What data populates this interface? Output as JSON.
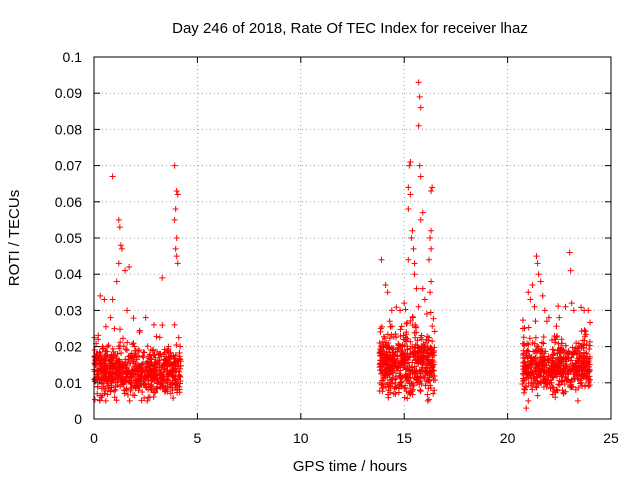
{
  "chart_data": {
    "type": "scatter",
    "title": "Day 246 of 2018, Rate Of TEC Index for receiver lhaz",
    "xlabel": "GPS time / hours",
    "ylabel": "ROTI / TECUs",
    "xlim": [
      0,
      25
    ],
    "ylim": [
      0,
      0.1
    ],
    "x_ticks": [
      0,
      5,
      10,
      15,
      20,
      25
    ],
    "x_tick_labels": [
      "0",
      "5",
      "10",
      "15",
      "20",
      "25"
    ],
    "y_ticks": [
      0,
      0.01,
      0.02,
      0.03,
      0.04,
      0.05,
      0.06,
      0.07,
      0.08,
      0.09,
      0.1
    ],
    "y_tick_labels": [
      "0",
      "0.01",
      "0.02",
      "0.03",
      "0.04",
      "0.05",
      "0.06",
      "0.07",
      "0.08",
      "0.09",
      "0.1"
    ],
    "grid": true,
    "marker": "plus",
    "marker_color": "#ff0000",
    "series": [
      {
        "name": "ROTI",
        "clusters": [
          {
            "x_range": [
              0.0,
              4.2
            ],
            "y_median": 0.013,
            "y_spread": 0.004,
            "count": 700
          },
          {
            "x_range": [
              13.8,
              16.5
            ],
            "y_median": 0.015,
            "y_spread": 0.005,
            "count": 520
          },
          {
            "x_range": [
              20.7,
              24.0
            ],
            "y_median": 0.014,
            "y_spread": 0.004,
            "count": 560
          }
        ],
        "points": [
          [
            0.9,
            0.067
          ],
          [
            1.2,
            0.055
          ],
          [
            1.25,
            0.053
          ],
          [
            1.3,
            0.048
          ],
          [
            1.35,
            0.047
          ],
          [
            1.2,
            0.043
          ],
          [
            1.5,
            0.041
          ],
          [
            1.7,
            0.042
          ],
          [
            0.3,
            0.034
          ],
          [
            0.5,
            0.033
          ],
          [
            0.9,
            0.033
          ],
          [
            1.1,
            0.038
          ],
          [
            1.6,
            0.03
          ],
          [
            3.3,
            0.039
          ],
          [
            2.5,
            0.028
          ],
          [
            3.9,
            0.07
          ],
          [
            4.0,
            0.063
          ],
          [
            4.05,
            0.062
          ],
          [
            3.95,
            0.058
          ],
          [
            3.9,
            0.055
          ],
          [
            4.0,
            0.05
          ],
          [
            3.95,
            0.047
          ],
          [
            4.0,
            0.045
          ],
          [
            4.05,
            0.043
          ],
          [
            3.9,
            0.026
          ],
          [
            0.2,
            0.022
          ],
          [
            0.8,
            0.028
          ],
          [
            2.2,
            0.024
          ],
          [
            2.9,
            0.026
          ],
          [
            3.6,
            0.02
          ],
          [
            13.9,
            0.044
          ],
          [
            14.1,
            0.037
          ],
          [
            14.2,
            0.035
          ],
          [
            14.4,
            0.03
          ],
          [
            14.8,
            0.03
          ],
          [
            15.0,
            0.032
          ],
          [
            15.2,
            0.044
          ],
          [
            15.2,
            0.058
          ],
          [
            15.3,
            0.071
          ],
          [
            15.25,
            0.07
          ],
          [
            15.2,
            0.064
          ],
          [
            15.3,
            0.062
          ],
          [
            15.35,
            0.05
          ],
          [
            15.4,
            0.052
          ],
          [
            15.45,
            0.047
          ],
          [
            15.5,
            0.043
          ],
          [
            15.5,
            0.04
          ],
          [
            15.7,
            0.093
          ],
          [
            15.75,
            0.089
          ],
          [
            15.8,
            0.086
          ],
          [
            15.7,
            0.081
          ],
          [
            15.75,
            0.07
          ],
          [
            15.8,
            0.067
          ],
          [
            15.9,
            0.057
          ],
          [
            15.8,
            0.055
          ],
          [
            16.3,
            0.063
          ],
          [
            16.35,
            0.064
          ],
          [
            16.3,
            0.052
          ],
          [
            16.25,
            0.05
          ],
          [
            16.3,
            0.047
          ],
          [
            16.2,
            0.044
          ],
          [
            16.3,
            0.038
          ],
          [
            16.25,
            0.035
          ],
          [
            15.9,
            0.036
          ],
          [
            16.0,
            0.033
          ],
          [
            15.6,
            0.036
          ],
          [
            15.1,
            0.024
          ],
          [
            14.3,
            0.027
          ],
          [
            15.7,
            0.031
          ],
          [
            16.1,
            0.029
          ],
          [
            21.0,
            0.035
          ],
          [
            21.1,
            0.033
          ],
          [
            21.2,
            0.037
          ],
          [
            21.4,
            0.045
          ],
          [
            21.45,
            0.043
          ],
          [
            21.5,
            0.04
          ],
          [
            21.6,
            0.038
          ],
          [
            21.3,
            0.031
          ],
          [
            21.7,
            0.034
          ],
          [
            21.8,
            0.03
          ],
          [
            22.0,
            0.028
          ],
          [
            22.5,
            0.028
          ],
          [
            22.8,
            0.031
          ],
          [
            23.0,
            0.046
          ],
          [
            23.05,
            0.041
          ],
          [
            23.1,
            0.032
          ],
          [
            23.2,
            0.03
          ],
          [
            23.7,
            0.03
          ],
          [
            23.9,
            0.03
          ],
          [
            21.9,
            0.027
          ],
          [
            20.9,
            0.003
          ],
          [
            21.0,
            0.005
          ],
          [
            22.3,
            0.006
          ],
          [
            23.4,
            0.005
          ],
          [
            1.0,
            0.006
          ],
          [
            2.7,
            0.006
          ],
          [
            14.5,
            0.007
          ],
          [
            16.4,
            0.007
          ],
          [
            3.8,
            0.008
          ],
          [
            0.5,
            0.007
          ]
        ]
      }
    ]
  }
}
